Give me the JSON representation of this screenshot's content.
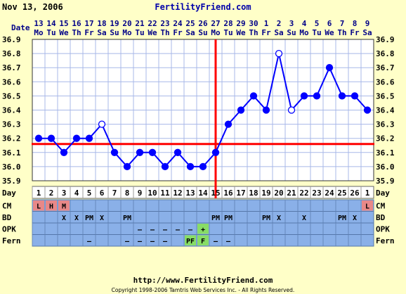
{
  "header": {
    "date": "Nov 13, 2006",
    "site": "FertilityFriend.com"
  },
  "footer": {
    "url": "http://www.FertilityFriend.com",
    "copyright": "Copyright 1998-2006 Tamtris Web Services Inc. - All Rights Reserved."
  },
  "colors": {
    "background": "#ffffc8",
    "plot_bg": "#ffffff",
    "grid": "#a8b8e8",
    "line": "#0000ff",
    "marker": "#0000ff",
    "coverline": "#ff0000",
    "text_blue": "#000088",
    "row_blue": "#8ab0e8",
    "row_red": "#e88888",
    "row_green": "#88dd66"
  },
  "chart_data": {
    "type": "line",
    "title": "",
    "xlabel": "Day",
    "ylabel": "",
    "ylim": [
      35.9,
      36.9
    ],
    "yticks": [
      "35.9",
      "36.0",
      "36.1",
      "36.2",
      "36.3",
      "36.4",
      "36.5",
      "36.6",
      "36.7",
      "36.8",
      "36.9"
    ],
    "row_labels": {
      "date": "Date",
      "day": "Day",
      "cm": "CM",
      "bd": "BD",
      "opk": "OPK",
      "fern": "Fern"
    },
    "dates": [
      "13",
      "14",
      "15",
      "16",
      "17",
      "18",
      "19",
      "20",
      "21",
      "22",
      "23",
      "24",
      "25",
      "26",
      "27",
      "28",
      "29",
      "30",
      "1",
      "2",
      "3",
      "4",
      "5",
      "6",
      "7",
      "8",
      "9"
    ],
    "weekdays": [
      "Mo",
      "Tu",
      "We",
      "Th",
      "Fr",
      "Sa",
      "Su",
      "Mo",
      "Tu",
      "We",
      "Th",
      "Fr",
      "Sa",
      "Su",
      "Mo",
      "Tu",
      "We",
      "Th",
      "Fr",
      "Sa",
      "Su",
      "Mo",
      "Tu",
      "We",
      "Th",
      "Fr",
      "Sa"
    ],
    "days": [
      "1",
      "2",
      "3",
      "4",
      "5",
      "6",
      "7",
      "8",
      "9",
      "10",
      "11",
      "12",
      "13",
      "14",
      "15",
      "16",
      "17",
      "18",
      "19",
      "20",
      "21",
      "22",
      "23",
      "24",
      "25",
      "26",
      "1"
    ],
    "temps": [
      36.2,
      36.2,
      36.1,
      36.2,
      36.2,
      36.3,
      36.1,
      36.0,
      36.1,
      36.1,
      36.0,
      36.1,
      36.0,
      36.0,
      36.1,
      36.3,
      36.4,
      36.5,
      36.4,
      36.8,
      36.4,
      36.5,
      36.5,
      36.7,
      36.5,
      36.5,
      36.4
    ],
    "open_markers": [
      6,
      20,
      21
    ],
    "coverline": 36.16,
    "ovulation_day": 15,
    "cm": [
      "L",
      "H",
      "M",
      "",
      "",
      "",
      "",
      "",
      "",
      "",
      "",
      "",
      "",
      "",
      "",
      "",
      "",
      "",
      "",
      "",
      "",
      "",
      "",
      "",
      "",
      "",
      "L"
    ],
    "bd": [
      "",
      "",
      "X",
      "X",
      "PM",
      "X",
      "",
      "PM",
      "",
      "",
      "",
      "",
      "",
      "",
      "PM",
      "PM",
      "",
      "",
      "PM",
      "X",
      "",
      "X",
      "",
      "",
      "PM",
      "X",
      ""
    ],
    "opk": [
      "",
      "",
      "",
      "",
      "",
      "",
      "",
      "",
      "—",
      "—",
      "—",
      "—",
      "—",
      "+",
      "",
      "",
      "",
      "",
      "",
      "",
      "",
      "",
      "",
      "",
      "",
      "",
      ""
    ],
    "fern": [
      "",
      "",
      "",
      "",
      "—",
      "",
      "",
      "—",
      "—",
      "—",
      "—",
      "",
      "PF",
      "F",
      "—",
      "—",
      "",
      "",
      "",
      "",
      "",
      "",
      "",
      "",
      "",
      "",
      ""
    ]
  }
}
